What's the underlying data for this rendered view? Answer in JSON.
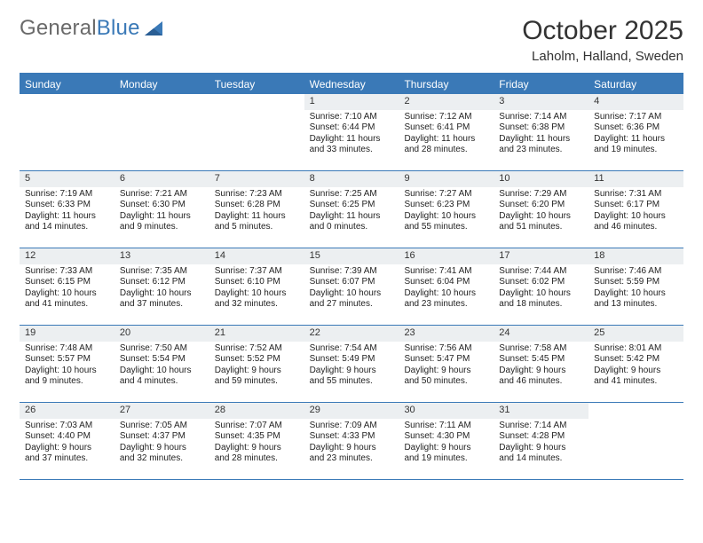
{
  "brand": {
    "part1": "General",
    "part2": "Blue"
  },
  "month_title": "October 2025",
  "location": "Laholm, Halland, Sweden",
  "colors": {
    "accent": "#3a79b7",
    "daybar": "#eceff1",
    "text": "#333333",
    "body": "#232323",
    "bg": "#ffffff"
  },
  "weekdays": [
    "Sunday",
    "Monday",
    "Tuesday",
    "Wednesday",
    "Thursday",
    "Friday",
    "Saturday"
  ],
  "leading_blanks": 3,
  "days": [
    {
      "n": "1",
      "sunrise": "Sunrise: 7:10 AM",
      "sunset": "Sunset: 6:44 PM",
      "d1": "Daylight: 11 hours",
      "d2": "and 33 minutes."
    },
    {
      "n": "2",
      "sunrise": "Sunrise: 7:12 AM",
      "sunset": "Sunset: 6:41 PM",
      "d1": "Daylight: 11 hours",
      "d2": "and 28 minutes."
    },
    {
      "n": "3",
      "sunrise": "Sunrise: 7:14 AM",
      "sunset": "Sunset: 6:38 PM",
      "d1": "Daylight: 11 hours",
      "d2": "and 23 minutes."
    },
    {
      "n": "4",
      "sunrise": "Sunrise: 7:17 AM",
      "sunset": "Sunset: 6:36 PM",
      "d1": "Daylight: 11 hours",
      "d2": "and 19 minutes."
    },
    {
      "n": "5",
      "sunrise": "Sunrise: 7:19 AM",
      "sunset": "Sunset: 6:33 PM",
      "d1": "Daylight: 11 hours",
      "d2": "and 14 minutes."
    },
    {
      "n": "6",
      "sunrise": "Sunrise: 7:21 AM",
      "sunset": "Sunset: 6:30 PM",
      "d1": "Daylight: 11 hours",
      "d2": "and 9 minutes."
    },
    {
      "n": "7",
      "sunrise": "Sunrise: 7:23 AM",
      "sunset": "Sunset: 6:28 PM",
      "d1": "Daylight: 11 hours",
      "d2": "and 5 minutes."
    },
    {
      "n": "8",
      "sunrise": "Sunrise: 7:25 AM",
      "sunset": "Sunset: 6:25 PM",
      "d1": "Daylight: 11 hours",
      "d2": "and 0 minutes."
    },
    {
      "n": "9",
      "sunrise": "Sunrise: 7:27 AM",
      "sunset": "Sunset: 6:23 PM",
      "d1": "Daylight: 10 hours",
      "d2": "and 55 minutes."
    },
    {
      "n": "10",
      "sunrise": "Sunrise: 7:29 AM",
      "sunset": "Sunset: 6:20 PM",
      "d1": "Daylight: 10 hours",
      "d2": "and 51 minutes."
    },
    {
      "n": "11",
      "sunrise": "Sunrise: 7:31 AM",
      "sunset": "Sunset: 6:17 PM",
      "d1": "Daylight: 10 hours",
      "d2": "and 46 minutes."
    },
    {
      "n": "12",
      "sunrise": "Sunrise: 7:33 AM",
      "sunset": "Sunset: 6:15 PM",
      "d1": "Daylight: 10 hours",
      "d2": "and 41 minutes."
    },
    {
      "n": "13",
      "sunrise": "Sunrise: 7:35 AM",
      "sunset": "Sunset: 6:12 PM",
      "d1": "Daylight: 10 hours",
      "d2": "and 37 minutes."
    },
    {
      "n": "14",
      "sunrise": "Sunrise: 7:37 AM",
      "sunset": "Sunset: 6:10 PM",
      "d1": "Daylight: 10 hours",
      "d2": "and 32 minutes."
    },
    {
      "n": "15",
      "sunrise": "Sunrise: 7:39 AM",
      "sunset": "Sunset: 6:07 PM",
      "d1": "Daylight: 10 hours",
      "d2": "and 27 minutes."
    },
    {
      "n": "16",
      "sunrise": "Sunrise: 7:41 AM",
      "sunset": "Sunset: 6:04 PM",
      "d1": "Daylight: 10 hours",
      "d2": "and 23 minutes."
    },
    {
      "n": "17",
      "sunrise": "Sunrise: 7:44 AM",
      "sunset": "Sunset: 6:02 PM",
      "d1": "Daylight: 10 hours",
      "d2": "and 18 minutes."
    },
    {
      "n": "18",
      "sunrise": "Sunrise: 7:46 AM",
      "sunset": "Sunset: 5:59 PM",
      "d1": "Daylight: 10 hours",
      "d2": "and 13 minutes."
    },
    {
      "n": "19",
      "sunrise": "Sunrise: 7:48 AM",
      "sunset": "Sunset: 5:57 PM",
      "d1": "Daylight: 10 hours",
      "d2": "and 9 minutes."
    },
    {
      "n": "20",
      "sunrise": "Sunrise: 7:50 AM",
      "sunset": "Sunset: 5:54 PM",
      "d1": "Daylight: 10 hours",
      "d2": "and 4 minutes."
    },
    {
      "n": "21",
      "sunrise": "Sunrise: 7:52 AM",
      "sunset": "Sunset: 5:52 PM",
      "d1": "Daylight: 9 hours",
      "d2": "and 59 minutes."
    },
    {
      "n": "22",
      "sunrise": "Sunrise: 7:54 AM",
      "sunset": "Sunset: 5:49 PM",
      "d1": "Daylight: 9 hours",
      "d2": "and 55 minutes."
    },
    {
      "n": "23",
      "sunrise": "Sunrise: 7:56 AM",
      "sunset": "Sunset: 5:47 PM",
      "d1": "Daylight: 9 hours",
      "d2": "and 50 minutes."
    },
    {
      "n": "24",
      "sunrise": "Sunrise: 7:58 AM",
      "sunset": "Sunset: 5:45 PM",
      "d1": "Daylight: 9 hours",
      "d2": "and 46 minutes."
    },
    {
      "n": "25",
      "sunrise": "Sunrise: 8:01 AM",
      "sunset": "Sunset: 5:42 PM",
      "d1": "Daylight: 9 hours",
      "d2": "and 41 minutes."
    },
    {
      "n": "26",
      "sunrise": "Sunrise: 7:03 AM",
      "sunset": "Sunset: 4:40 PM",
      "d1": "Daylight: 9 hours",
      "d2": "and 37 minutes."
    },
    {
      "n": "27",
      "sunrise": "Sunrise: 7:05 AM",
      "sunset": "Sunset: 4:37 PM",
      "d1": "Daylight: 9 hours",
      "d2": "and 32 minutes."
    },
    {
      "n": "28",
      "sunrise": "Sunrise: 7:07 AM",
      "sunset": "Sunset: 4:35 PM",
      "d1": "Daylight: 9 hours",
      "d2": "and 28 minutes."
    },
    {
      "n": "29",
      "sunrise": "Sunrise: 7:09 AM",
      "sunset": "Sunset: 4:33 PM",
      "d1": "Daylight: 9 hours",
      "d2": "and 23 minutes."
    },
    {
      "n": "30",
      "sunrise": "Sunrise: 7:11 AM",
      "sunset": "Sunset: 4:30 PM",
      "d1": "Daylight: 9 hours",
      "d2": "and 19 minutes."
    },
    {
      "n": "31",
      "sunrise": "Sunrise: 7:14 AM",
      "sunset": "Sunset: 4:28 PM",
      "d1": "Daylight: 9 hours",
      "d2": "and 14 minutes."
    }
  ]
}
